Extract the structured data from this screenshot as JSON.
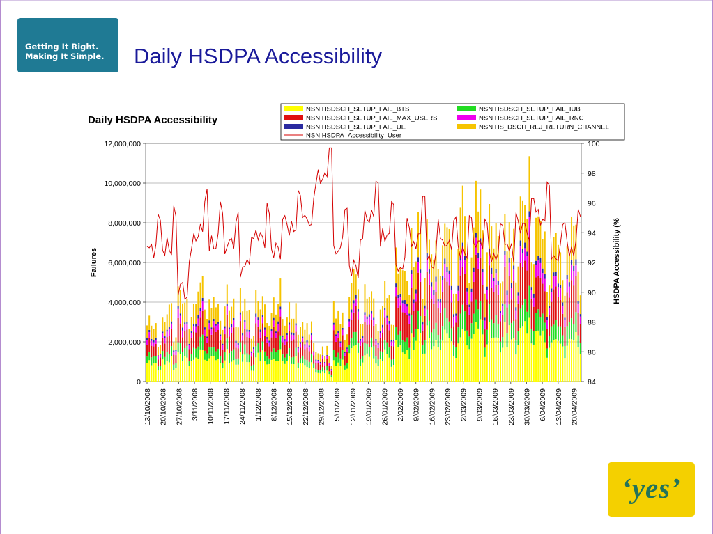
{
  "slide": {
    "title": "Daily HSDPA Accessibility",
    "logo_text": [
      "Getting It Right.",
      "Making It Simple."
    ],
    "brand_text": "‘yes’"
  },
  "colors": {
    "slide_title": "#1a1a9a",
    "logo_bg": "#1f7a94",
    "brand_bg": "#f4d000",
    "brand_fg": "#23735a",
    "line": "#d40000"
  },
  "chart_data": {
    "type": "bar",
    "stacked": true,
    "title": "Daily HSDPA  Accessibility",
    "ylabel": "Failures",
    "y2label": "HSDPA Accessibility (%",
    "ylim": [
      0,
      12000000
    ],
    "y2lim": [
      84,
      100
    ],
    "yticks": [
      "0",
      "2,000,000",
      "4,000,000",
      "6,000,000",
      "8,000,000",
      "10,000,000",
      "12,000,000"
    ],
    "y2ticks": [
      "84",
      "86",
      "88",
      "90",
      "92",
      "94",
      "96",
      "98",
      "100"
    ],
    "x_start": "13/10/2008",
    "x_end": "25/04/2009",
    "xticks": [
      "13/10/2008",
      "20/10/2008",
      "27/10/2008",
      "3/11/2008",
      "10/11/2008",
      "17/11/2008",
      "24/11/2008",
      "1/12/2008",
      "8/12/2008",
      "15/12/2008",
      "22/12/2008",
      "29/12/2008",
      "5/01/2009",
      "12/01/2009",
      "19/01/2009",
      "26/01/2009",
      "2/02/2009",
      "9/02/2009",
      "16/02/2009",
      "23/02/2009",
      "2/03/2009",
      "9/03/2009",
      "16/03/2009",
      "23/03/2009",
      "30/03/2009",
      "6/04/2009",
      "13/04/2009",
      "20/04/2009"
    ],
    "grid": true,
    "legend_position": "top-right",
    "series": [
      {
        "name": "NSN HSDSCH_SETUP_FAIL_BTS",
        "color": "#ffff00",
        "kind": "bar"
      },
      {
        "name": "NSN HSDSCH_SETUP_FAIL_IUB",
        "color": "#22dd22",
        "kind": "bar"
      },
      {
        "name": "NSN HSDSCH_SETUP_FAIL_MAX_USERS",
        "color": "#e01010",
        "kind": "bar"
      },
      {
        "name": "NSN HSDSCH_SETUP_FAIL_RNC",
        "color": "#ee00ee",
        "kind": "bar"
      },
      {
        "name": "NSN HSDSCH_SETUP_FAIL_UE",
        "color": "#2a2aa0",
        "kind": "bar"
      },
      {
        "name": "NSN HS_DSCH_REJ_RETURN_CHANNEL",
        "color": "#f6c400",
        "kind": "bar"
      },
      {
        "name": "NSN HSDPA_Accessibility_User",
        "color": "#d40000",
        "kind": "line",
        "axis": "y2"
      }
    ],
    "weekly_totals": [
      3000000,
      3400000,
      4700000,
      4500000,
      4200000,
      4000000,
      3800000,
      4300000,
      4100000,
      3900000,
      2600000,
      1500000,
      3500000,
      4800000,
      4200000,
      3900000,
      5900000,
      6900000,
      6800000,
      7300000,
      8200000,
      8000000,
      7600000,
      7300000,
      9600000,
      7900000,
      6900000,
      7600000
    ],
    "weekly_accessibility": [
      93.0,
      93.5,
      90.5,
      94.5,
      93.8,
      93.5,
      92.0,
      94.0,
      93.0,
      94.5,
      95.0,
      98.0,
      93.5,
      92.0,
      95.5,
      94.0,
      92.5,
      94.0,
      92.5,
      93.5,
      93.0,
      93.5,
      92.5,
      93.0,
      94.5,
      95.5,
      93.0,
      93.5
    ]
  }
}
